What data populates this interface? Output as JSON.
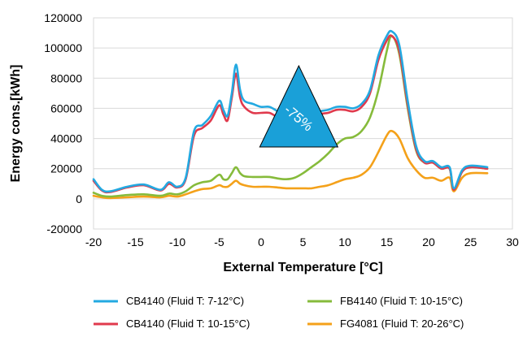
{
  "chart_data": {
    "type": "line",
    "title": "",
    "xlabel": "External Temperature [°C]",
    "ylabel": "Energy cons.[kWh]",
    "xlim": [
      -20,
      30
    ],
    "ylim": [
      -20000,
      120000
    ],
    "x_ticks": [
      -20,
      -15,
      -10,
      -5,
      0,
      5,
      10,
      15,
      20,
      25,
      30
    ],
    "x_tick_labels": [
      "-20",
      "-15",
      "-10",
      "-5",
      "0",
      "5",
      "10",
      "15",
      "20",
      "25",
      "30"
    ],
    "y_ticks": [
      -20000,
      0,
      20000,
      40000,
      60000,
      80000,
      100000,
      120000
    ],
    "y_tick_labels": [
      "-20000",
      "0",
      "20000",
      "40000",
      "60000",
      "80000",
      "100000",
      "120000"
    ],
    "grid": {
      "horizontal": true,
      "vertical": false
    },
    "legend_placement": "bottom",
    "annotation": {
      "text": "-75%",
      "shape": "triangle",
      "color": "#1aa0d8",
      "at": [
        4.5,
        57000
      ]
    },
    "series": [
      {
        "name": "CB4140 (Fluid T: 7-12°C)",
        "color": "#23a9e1",
        "points": [
          [
            -20,
            13000
          ],
          [
            -19,
            6000
          ],
          [
            -18,
            5000
          ],
          [
            -16,
            8000
          ],
          [
            -14,
            9500
          ],
          [
            -12,
            6000
          ],
          [
            -11,
            11000
          ],
          [
            -10,
            8000
          ],
          [
            -9,
            14000
          ],
          [
            -8,
            45000
          ],
          [
            -7,
            49000
          ],
          [
            -6,
            55000
          ],
          [
            -5,
            65000
          ],
          [
            -4.5,
            59000
          ],
          [
            -4,
            55000
          ],
          [
            -3.5,
            70000
          ],
          [
            -3,
            89000
          ],
          [
            -2.5,
            72000
          ],
          [
            -2,
            65000
          ],
          [
            -1,
            63000
          ],
          [
            0,
            61000
          ],
          [
            1,
            61000
          ],
          [
            2,
            58000
          ],
          [
            3,
            56000
          ],
          [
            4,
            52000
          ],
          [
            5,
            54000
          ],
          [
            6,
            55000
          ],
          [
            7,
            58000
          ],
          [
            8,
            59000
          ],
          [
            9,
            61000
          ],
          [
            10,
            61000
          ],
          [
            11,
            60000
          ],
          [
            12,
            63000
          ],
          [
            13,
            72000
          ],
          [
            14,
            95000
          ],
          [
            15,
            108000
          ],
          [
            15.6,
            111000
          ],
          [
            16.5,
            102000
          ],
          [
            17.5,
            65000
          ],
          [
            18.5,
            35000
          ],
          [
            19.5,
            25000
          ],
          [
            20.5,
            25000
          ],
          [
            21.5,
            21000
          ],
          [
            22.5,
            21000
          ],
          [
            23,
            7000
          ],
          [
            24,
            19000
          ],
          [
            25,
            22000
          ],
          [
            27,
            21000
          ]
        ]
      },
      {
        "name": "CB4140 (Fluid T: 10-15°C)",
        "color": "#e03a4d",
        "points": [
          [
            -20,
            12000
          ],
          [
            -19,
            5500
          ],
          [
            -18,
            4500
          ],
          [
            -16,
            7500
          ],
          [
            -14,
            9000
          ],
          [
            -12,
            5500
          ],
          [
            -11,
            10000
          ],
          [
            -10,
            7500
          ],
          [
            -9,
            13000
          ],
          [
            -8,
            42000
          ],
          [
            -7,
            47000
          ],
          [
            -6,
            52000
          ],
          [
            -5,
            62000
          ],
          [
            -4.5,
            56000
          ],
          [
            -4,
            52000
          ],
          [
            -3.5,
            67000
          ],
          [
            -3,
            83000
          ],
          [
            -2.5,
            67000
          ],
          [
            -2,
            61000
          ],
          [
            -1,
            57000
          ],
          [
            0,
            57000
          ],
          [
            1,
            57000
          ],
          [
            2,
            54000
          ],
          [
            3,
            52000
          ],
          [
            4,
            48000
          ],
          [
            5,
            50000
          ],
          [
            6,
            52000
          ],
          [
            7,
            56000
          ],
          [
            8,
            57000
          ],
          [
            9,
            59000
          ],
          [
            10,
            59000
          ],
          [
            11,
            58000
          ],
          [
            12,
            61000
          ],
          [
            13,
            70000
          ],
          [
            14,
            92000
          ],
          [
            15,
            105000
          ],
          [
            15.6,
            108000
          ],
          [
            16.5,
            98000
          ],
          [
            17.5,
            62000
          ],
          [
            18.5,
            33000
          ],
          [
            19.5,
            24000
          ],
          [
            20.5,
            24000
          ],
          [
            21.5,
            20000
          ],
          [
            22.5,
            20000
          ],
          [
            23,
            6000
          ],
          [
            24,
            18000
          ],
          [
            25,
            21000
          ],
          [
            27,
            20000
          ]
        ]
      },
      {
        "name": "FB4140 (Fluid T: 10-15°C)",
        "color": "#86bb3b",
        "points": [
          [
            -20,
            4000
          ],
          [
            -19,
            2000
          ],
          [
            -18,
            1500
          ],
          [
            -16,
            2500
          ],
          [
            -14,
            3000
          ],
          [
            -12,
            2000
          ],
          [
            -11,
            3500
          ],
          [
            -10,
            3000
          ],
          [
            -9,
            5000
          ],
          [
            -8,
            9000
          ],
          [
            -7,
            11000
          ],
          [
            -6,
            12000
          ],
          [
            -5,
            16000
          ],
          [
            -4.5,
            13000
          ],
          [
            -4,
            13000
          ],
          [
            -3.5,
            17000
          ],
          [
            -3,
            21000
          ],
          [
            -2.5,
            17000
          ],
          [
            -2,
            15000
          ],
          [
            -1,
            14500
          ],
          [
            0,
            14500
          ],
          [
            1,
            14500
          ],
          [
            2,
            13500
          ],
          [
            3,
            13000
          ],
          [
            4,
            14000
          ],
          [
            5,
            17000
          ],
          [
            6,
            21000
          ],
          [
            7,
            25000
          ],
          [
            8,
            30000
          ],
          [
            9,
            36000
          ],
          [
            10,
            40000
          ],
          [
            11,
            41000
          ],
          [
            12,
            45000
          ],
          [
            13,
            54000
          ],
          [
            14,
            72000
          ],
          [
            15,
            98000
          ],
          [
            15.6,
            108000
          ],
          [
            16.5,
            96000
          ],
          [
            17.5,
            60000
          ],
          [
            18.5,
            32000
          ],
          [
            19.5,
            24000
          ],
          [
            20.5,
            24000
          ],
          [
            21.5,
            20000
          ],
          [
            22.5,
            20000
          ],
          [
            23,
            6000
          ],
          [
            24,
            18000
          ],
          [
            25,
            21000
          ],
          [
            27,
            20000
          ]
        ]
      },
      {
        "name": "FG4081 (Fluid T: 20-26°C)",
        "color": "#f4a11a",
        "points": [
          [
            -20,
            2000
          ],
          [
            -19,
            1000
          ],
          [
            -18,
            500
          ],
          [
            -16,
            1000
          ],
          [
            -14,
            1500
          ],
          [
            -12,
            1000
          ],
          [
            -11,
            2000
          ],
          [
            -10,
            1500
          ],
          [
            -9,
            3000
          ],
          [
            -8,
            5000
          ],
          [
            -7,
            6500
          ],
          [
            -6,
            7000
          ],
          [
            -5,
            9000
          ],
          [
            -4.5,
            8000
          ],
          [
            -4,
            8000
          ],
          [
            -3.5,
            10000
          ],
          [
            -3,
            12000
          ],
          [
            -2.5,
            10000
          ],
          [
            -2,
            9000
          ],
          [
            -1,
            8000
          ],
          [
            0,
            8000
          ],
          [
            1,
            8000
          ],
          [
            2,
            7500
          ],
          [
            3,
            7000
          ],
          [
            4,
            7000
          ],
          [
            5,
            7000
          ],
          [
            6,
            7000
          ],
          [
            7,
            8000
          ],
          [
            8,
            9000
          ],
          [
            9,
            11000
          ],
          [
            10,
            13000
          ],
          [
            11,
            14000
          ],
          [
            12,
            16000
          ],
          [
            13,
            21000
          ],
          [
            14,
            31000
          ],
          [
            15,
            42000
          ],
          [
            15.6,
            45000
          ],
          [
            16.5,
            40000
          ],
          [
            17.5,
            27000
          ],
          [
            18.5,
            19000
          ],
          [
            19.5,
            14000
          ],
          [
            20.5,
            14000
          ],
          [
            21.5,
            12000
          ],
          [
            22.5,
            14000
          ],
          [
            23,
            5000
          ],
          [
            24,
            14000
          ],
          [
            25,
            17000
          ],
          [
            27,
            17000
          ]
        ]
      }
    ]
  }
}
